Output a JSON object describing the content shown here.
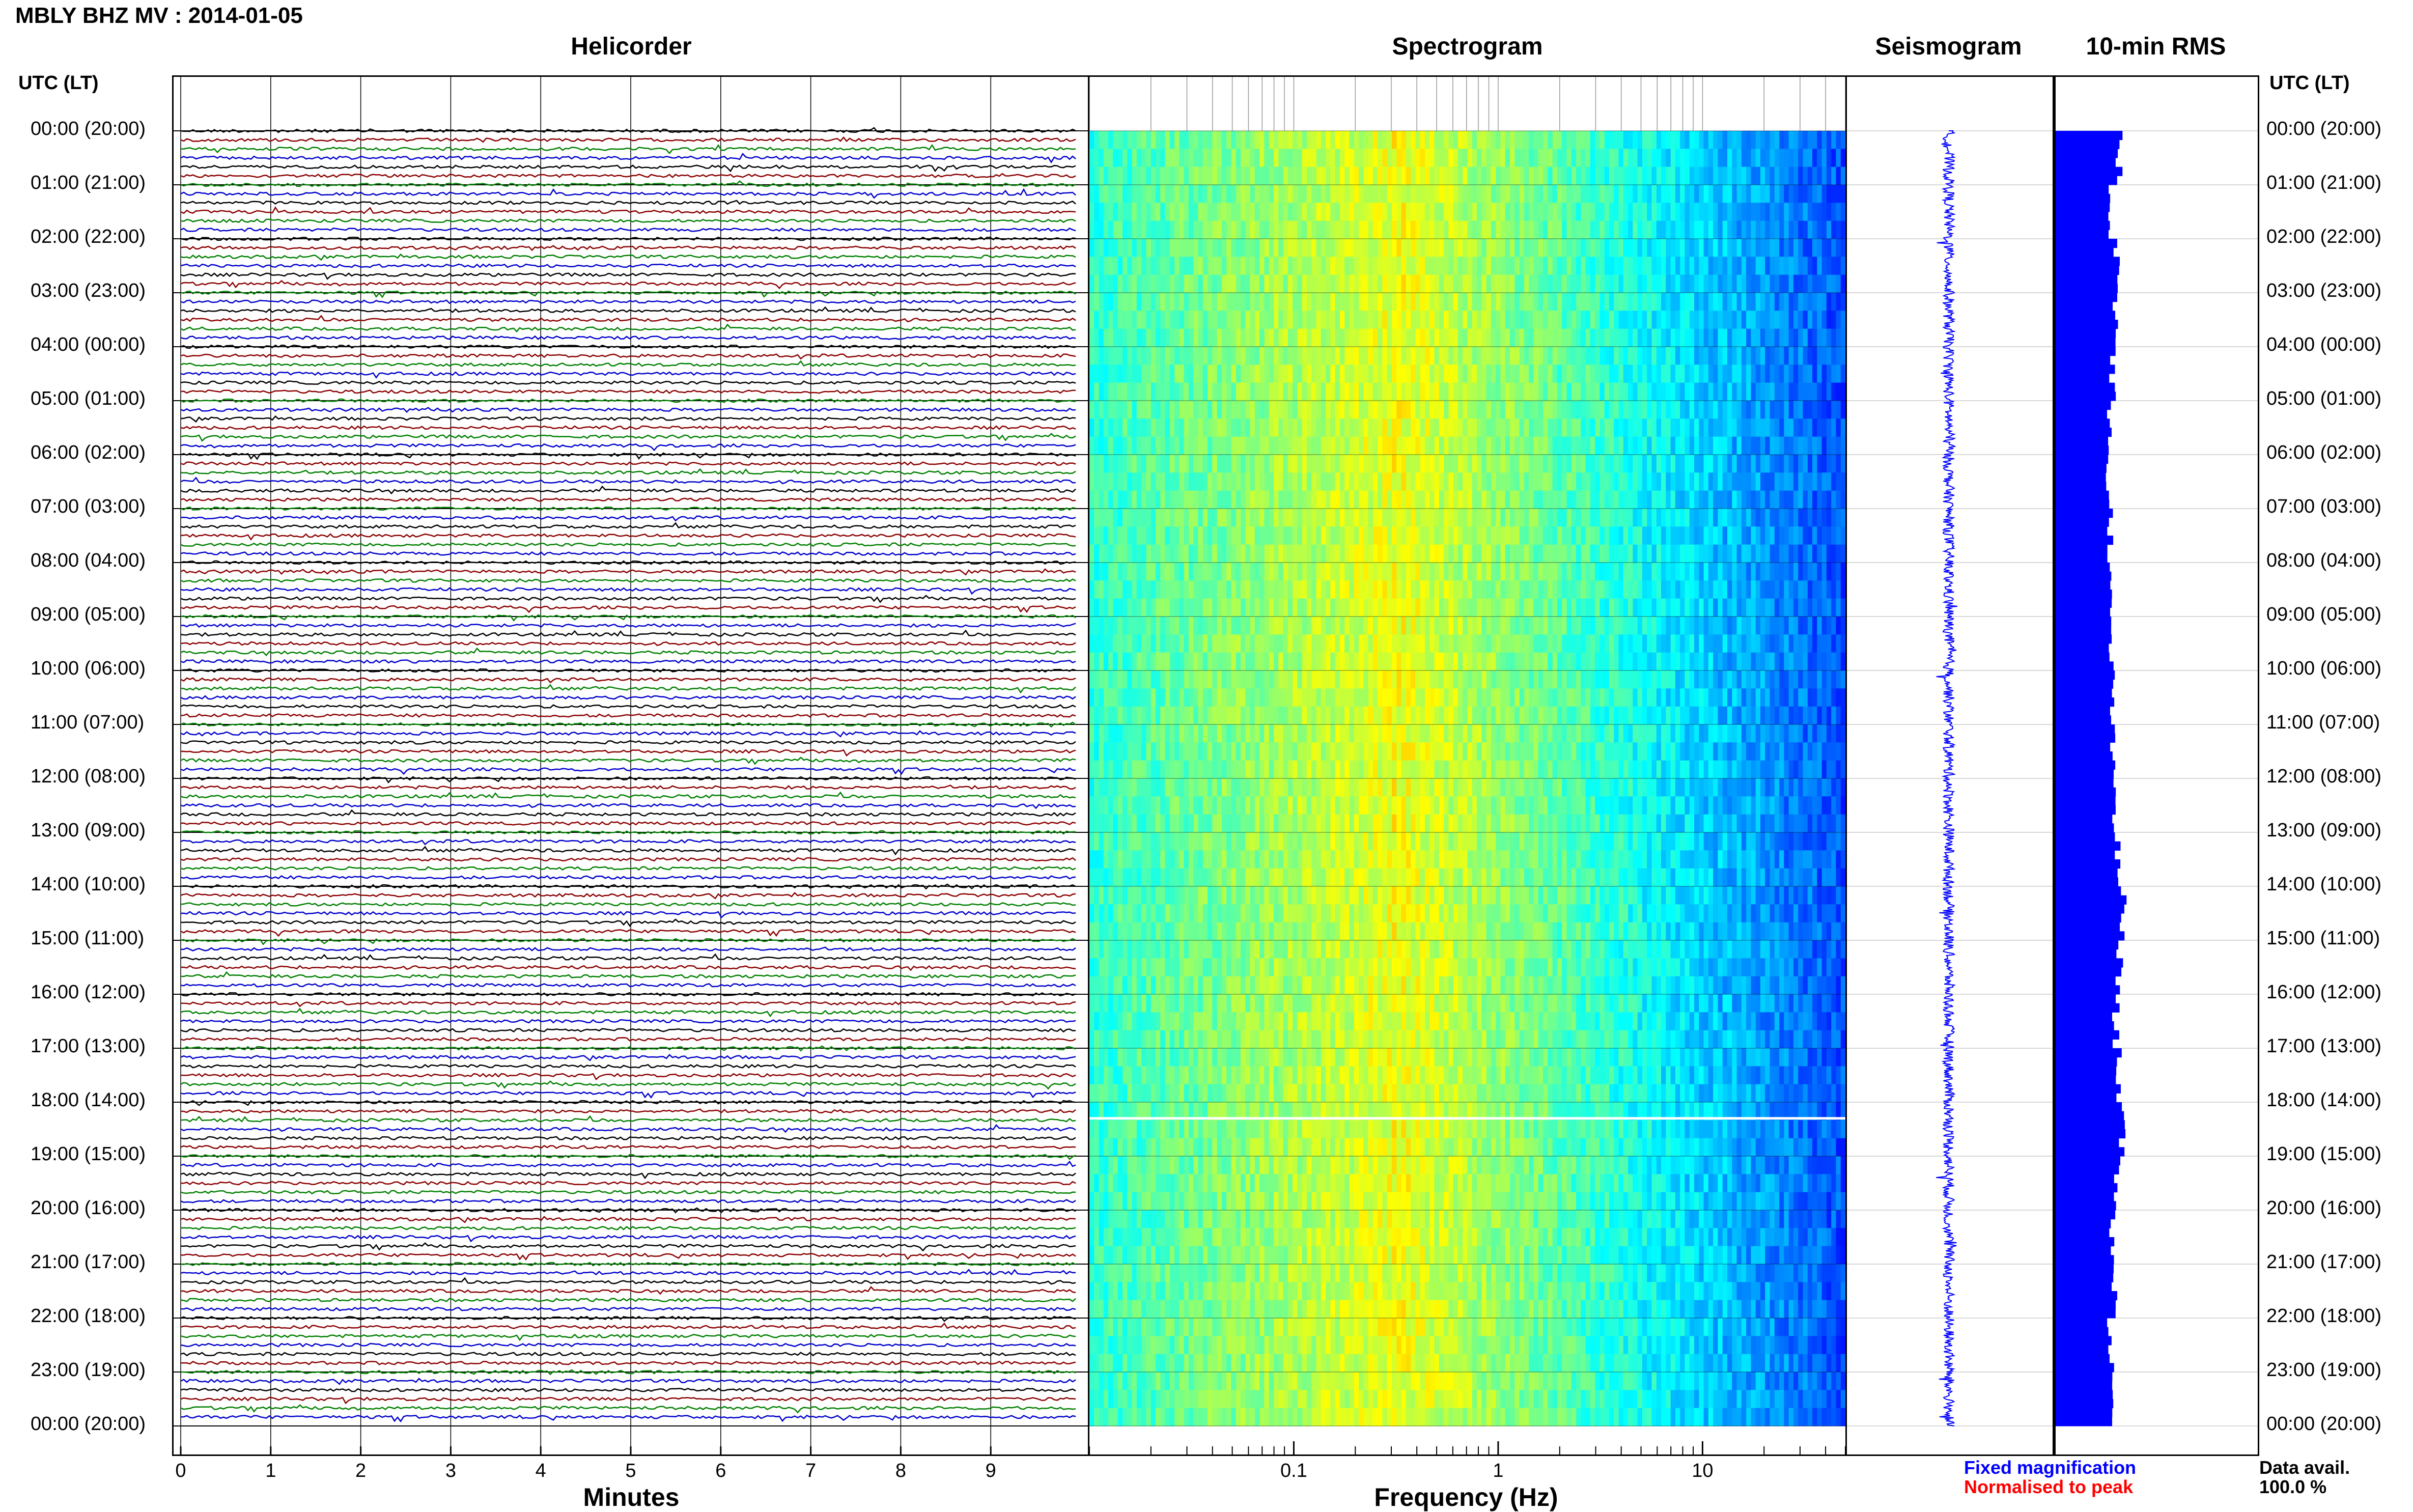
{
  "header": {
    "station_title": "MBLY BHZ MV : 2014-01-05"
  },
  "panels": {
    "helicorder_title": "Helicorder",
    "spectrogram_title": "Spectrogram",
    "seismogram_title": "Seismogram",
    "rms_title": "10-min RMS"
  },
  "time_axis": {
    "left_header": "UTC (LT)",
    "right_header": "UTC (LT)",
    "labels": [
      "00:00 (20:00)",
      "01:00 (21:00)",
      "02:00 (22:00)",
      "03:00 (23:00)",
      "04:00 (00:00)",
      "05:00 (01:00)",
      "06:00 (02:00)",
      "07:00 (03:00)",
      "08:00 (04:00)",
      "09:00 (05:00)",
      "10:00 (06:00)",
      "11:00 (07:00)",
      "12:00 (08:00)",
      "13:00 (09:00)",
      "14:00 (10:00)",
      "15:00 (11:00)",
      "16:00 (12:00)",
      "17:00 (13:00)",
      "18:00 (14:00)",
      "19:00 (15:00)",
      "20:00 (16:00)",
      "21:00 (17:00)",
      "22:00 (18:00)",
      "23:00 (19:00)",
      "00:00 (20:00)"
    ]
  },
  "legend": {
    "fixed": "Fixed magnification",
    "normalised": "Normalised to peak",
    "avail_label": "Data avail.",
    "avail_value": "100.0 %"
  },
  "colors": {
    "trace_cycle": [
      "#000000",
      "#8b0000",
      "#008000",
      "#0000cd"
    ],
    "seismogram": "#0000ff",
    "rms_bar": "#0000ff",
    "gap_line": "#ffffff"
  },
  "chart_data": [
    {
      "type": "line",
      "title": "Helicorder",
      "xlabel": "Minutes",
      "xticks": [
        "0",
        "1",
        "2",
        "3",
        "4",
        "5",
        "6",
        "7",
        "8",
        "9"
      ],
      "xlim": [
        0,
        10
      ],
      "rows_per_hour": 6,
      "hours": 24,
      "series_color_cycle": [
        "black",
        "darkred",
        "green",
        "blue"
      ]
    },
    {
      "type": "heatmap",
      "title": "Spectrogram",
      "xlabel": "Frequency (Hz)",
      "xscale": "log",
      "xlim": [
        0.01,
        50
      ],
      "xticks": [
        "0.1",
        "1",
        "10"
      ],
      "colormap": "jet",
      "peak_band_hz": [
        0.2,
        0.5
      ],
      "gap_near_utc_hour": 18.3
    },
    {
      "type": "line",
      "title": "Seismogram",
      "orientation": "vertical",
      "hours": 24
    },
    {
      "type": "bar",
      "title": "10-min RMS",
      "orientation": "horizontal",
      "bins_per_hour": 6,
      "hours": 24,
      "hourly_relative_values": [
        0.95,
        0.82,
        0.92,
        0.9,
        0.85,
        0.8,
        0.78,
        0.82,
        0.8,
        0.82,
        0.85,
        0.84,
        0.88,
        0.92,
        1.0,
        0.95,
        0.9,
        0.95,
        0.98,
        0.92,
        0.85,
        0.88,
        0.82,
        0.85
      ]
    }
  ]
}
